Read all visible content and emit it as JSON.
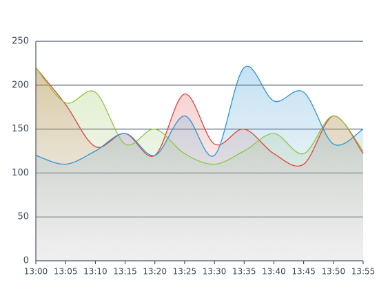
{
  "chart_data": {
    "type": "area",
    "categories": [
      "13:00",
      "13:05",
      "13:10",
      "13:15",
      "13:20",
      "13:25",
      "13:30",
      "13:35",
      "13:40",
      "13:45",
      "13:50",
      "13:55"
    ],
    "series": [
      {
        "color": "#e0443c",
        "values": [
          220,
          178,
          130,
          145,
          120,
          190,
          133,
          150,
          122,
          110,
          165,
          122
        ]
      },
      {
        "color": "#8cc63f",
        "values": [
          220,
          180,
          192,
          133,
          150,
          122,
          110,
          125,
          145,
          122,
          165,
          125
        ]
      },
      {
        "color": "#2b95d6",
        "values": [
          120,
          110,
          125,
          145,
          120,
          165,
          120,
          220,
          182,
          192,
          133,
          150
        ]
      }
    ],
    "ylim": [
      0,
      250
    ],
    "yticks": [
      0,
      50,
      100,
      150,
      200,
      250
    ],
    "grid": true
  }
}
